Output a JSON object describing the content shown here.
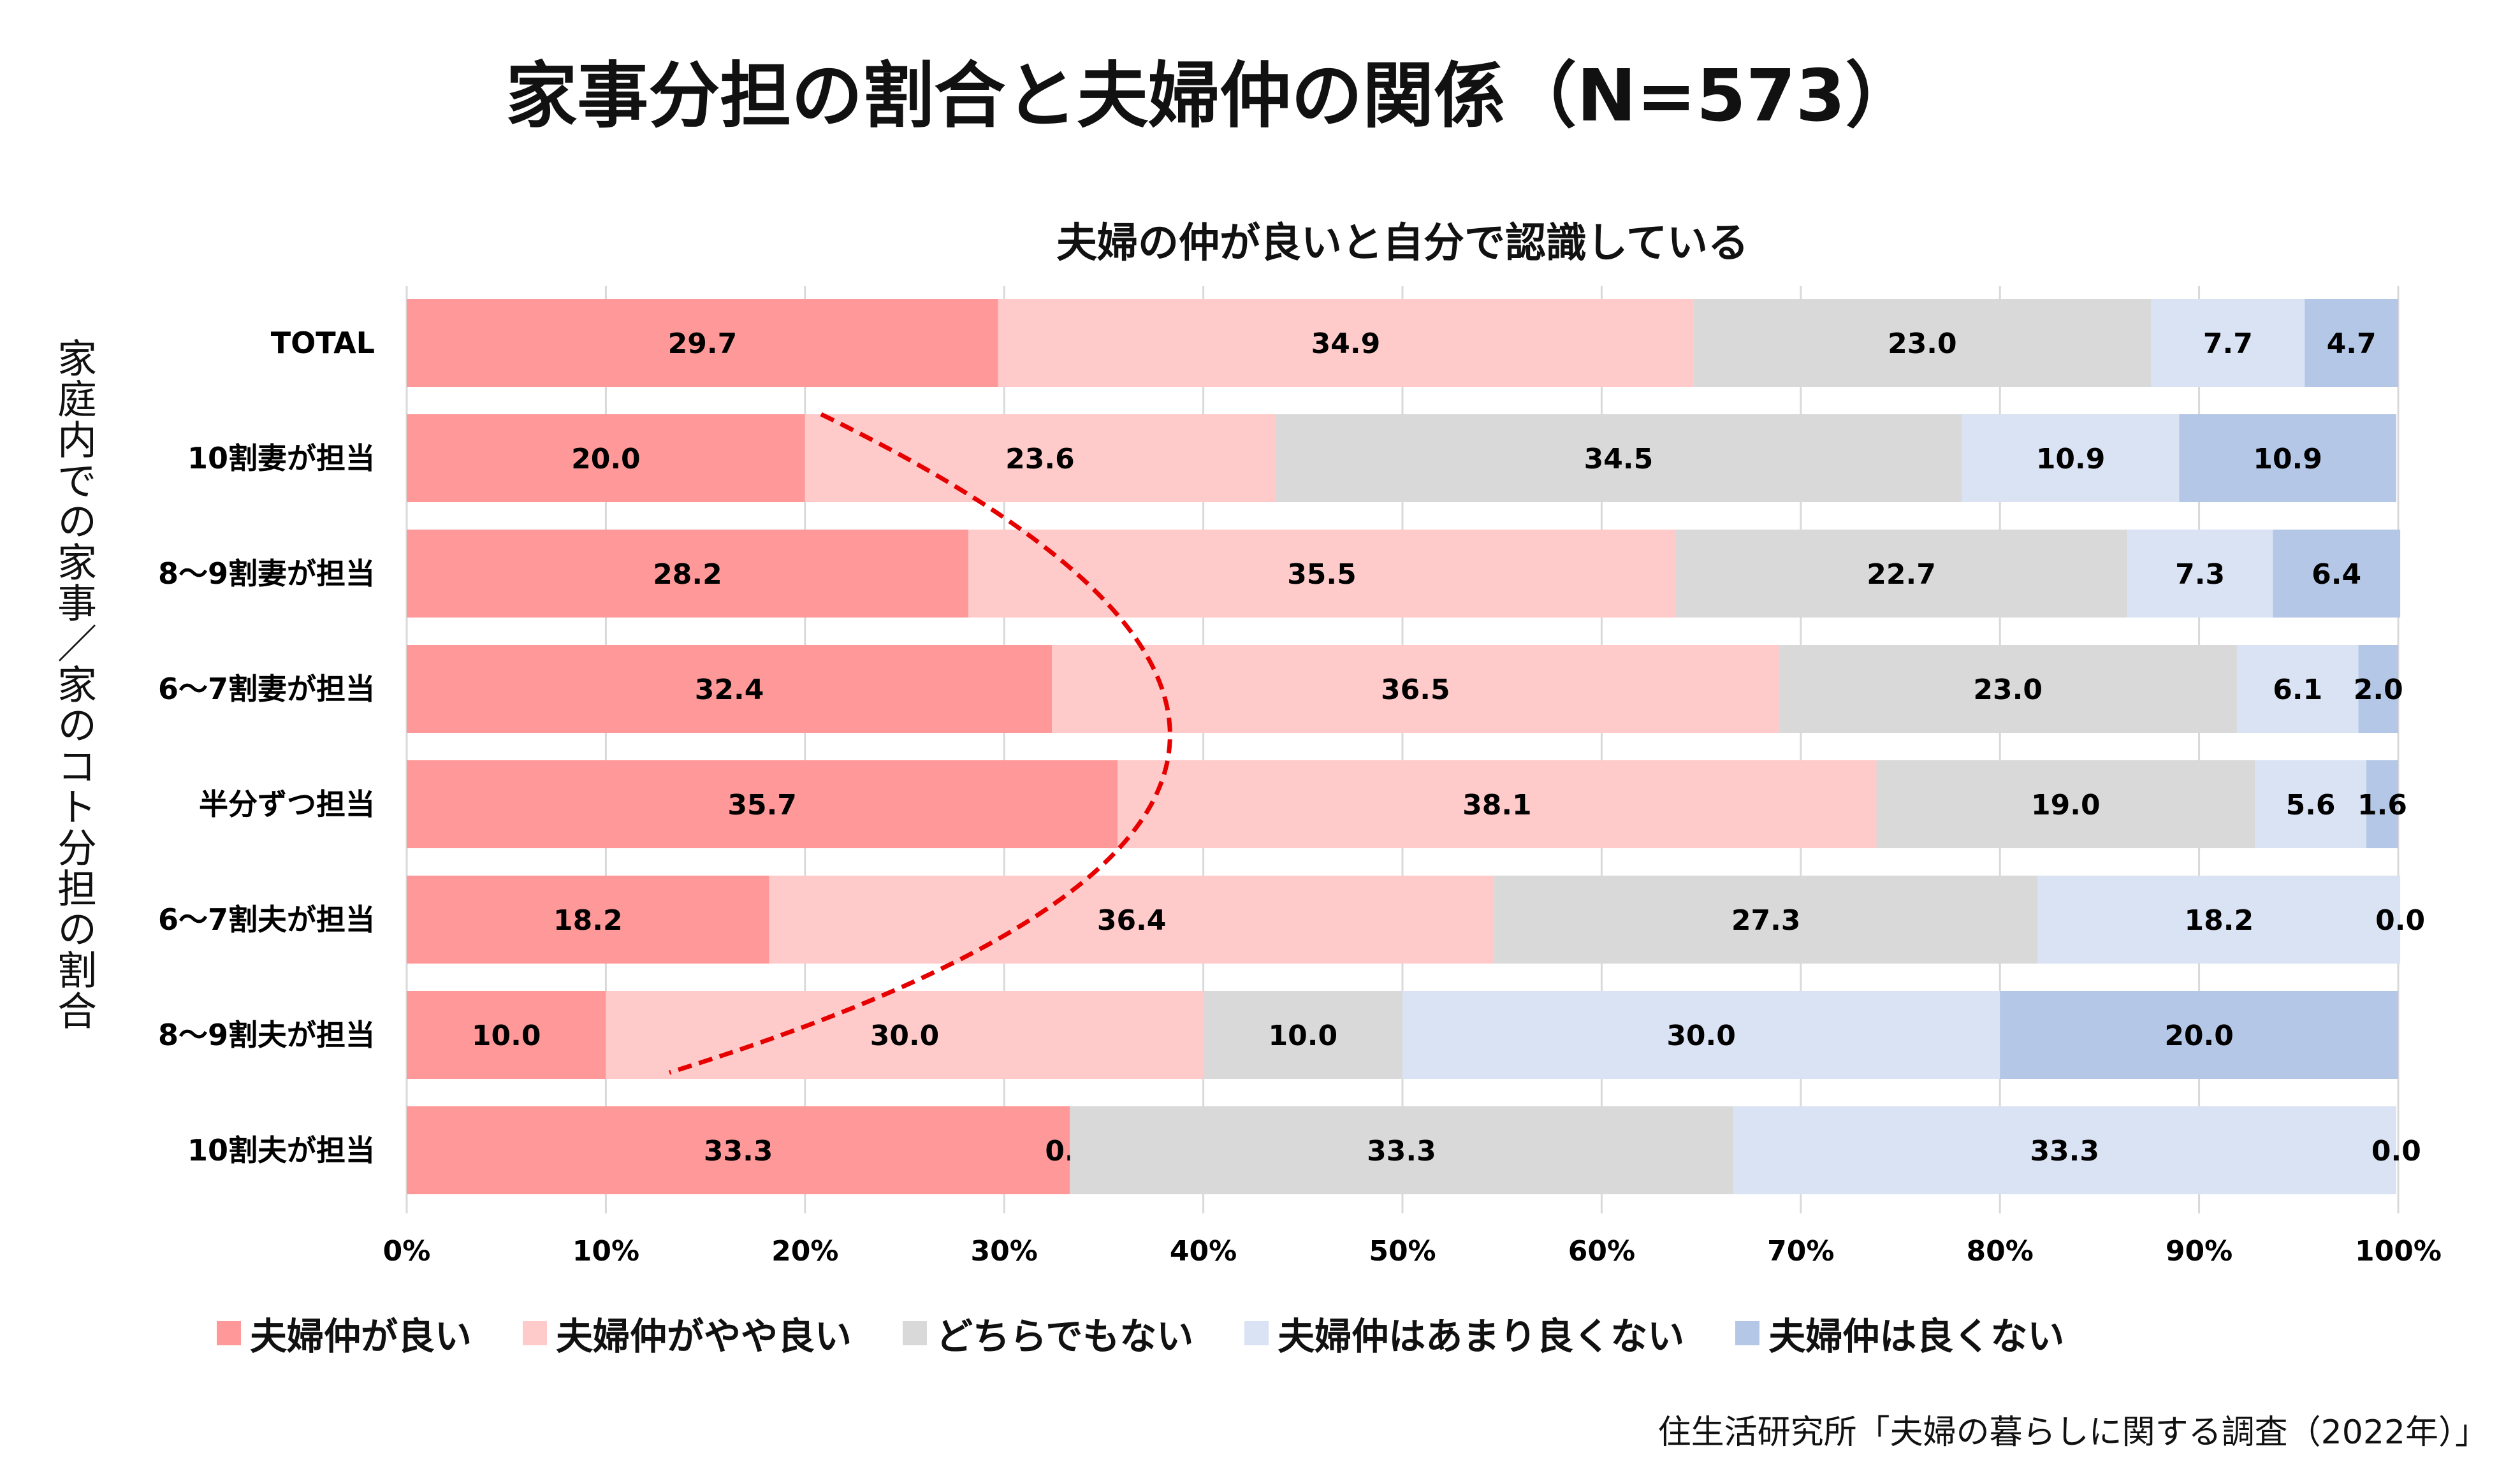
{
  "title": "家事分担の割合と夫婦仲の関係（N=573）",
  "source": "住生活研究所「夫婦の暮らしに関する調査（2022年）」",
  "chart_data": {
    "type": "bar",
    "orientation": "horizontal",
    "stacked": "100%",
    "title": "夫婦の仲が良いと自分で認識している",
    "ylabel": "家庭内での家事／家のコト分担の割合",
    "xlabel": "",
    "xlim": [
      0,
      100
    ],
    "x_ticks": [
      "0%",
      "10%",
      "20%",
      "30%",
      "40%",
      "50%",
      "60%",
      "70%",
      "80%",
      "90%",
      "100%"
    ],
    "grid": "vertical",
    "legend_position": "bottom",
    "categories": [
      "TOTAL",
      "10割妻が担当",
      "8〜9割妻が担当",
      "6〜7割妻が担当",
      "半分ずつ担当",
      "6〜7割夫が担当",
      "8〜9割夫が担当",
      "10割夫が担当"
    ],
    "series": [
      {
        "name": "夫婦仲が良い",
        "color": "#FF9999",
        "values": [
          29.7,
          20.0,
          28.2,
          32.4,
          35.7,
          18.2,
          10.0,
          33.3
        ]
      },
      {
        "name": "夫婦仲がやや良い",
        "color": "#FFCACA",
        "values": [
          34.9,
          23.6,
          35.5,
          36.5,
          38.1,
          36.4,
          30.0,
          0.0
        ]
      },
      {
        "name": "どちらでもない",
        "color": "#D9D9D9",
        "values": [
          23.0,
          34.5,
          22.7,
          23.0,
          19.0,
          27.3,
          10.0,
          33.3
        ]
      },
      {
        "name": "夫婦仲はあまり良くない",
        "color": "#DAE3F3",
        "values": [
          7.7,
          10.9,
          7.3,
          6.1,
          5.6,
          18.2,
          30.0,
          33.3
        ]
      },
      {
        "name": "夫婦仲は良くない",
        "color": "#B4C7E7",
        "values": [
          4.7,
          10.9,
          6.4,
          2.0,
          1.6,
          0.0,
          20.0,
          0.0
        ]
      }
    ],
    "annotation": {
      "type": "dashed-curve",
      "color": "#E60000"
    }
  }
}
